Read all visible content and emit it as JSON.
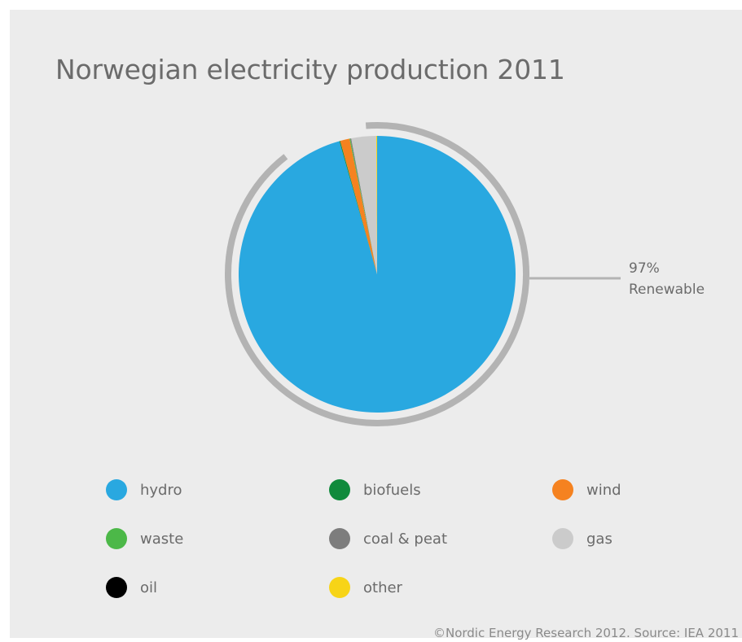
{
  "title": "Norwegian electricity production 2011",
  "callout": {
    "percent": "97%",
    "label": "Renewable"
  },
  "footer": "©Nordic Energy Research 2012. Source: IEA 2011",
  "colors": {
    "hydro": "#29a8e0",
    "biofuels": "#0f8a3c",
    "wind": "#f58220",
    "waste": "#4cb848",
    "coal_peat": "#7d7d7d",
    "gas": "#cbcbcb",
    "oil": "#000000",
    "other": "#f7d417",
    "ring": "#b3b3b3"
  },
  "legend": [
    {
      "label": "hydro",
      "color": "#29a8e0"
    },
    {
      "label": "biofuels",
      "color": "#0f8a3c"
    },
    {
      "label": "wind",
      "color": "#f58220"
    },
    {
      "label": "waste",
      "color": "#4cb848"
    },
    {
      "label": "coal & peat",
      "color": "#7d7d7d"
    },
    {
      "label": "gas",
      "color": "#cbcbcb"
    },
    {
      "label": "oil",
      "color": "#000000"
    },
    {
      "label": "other",
      "color": "#f7d417"
    }
  ],
  "chart_data": {
    "type": "pie",
    "title": "Norwegian electricity production 2011",
    "slices": [
      {
        "name": "hydro",
        "value": 95.7
      },
      {
        "name": "biofuels",
        "value": 0.1
      },
      {
        "name": "wind",
        "value": 1.1
      },
      {
        "name": "waste",
        "value": 0.1
      },
      {
        "name": "coal & peat",
        "value": 0.1
      },
      {
        "name": "gas",
        "value": 2.9
      },
      {
        "name": "oil",
        "value": 0.0
      },
      {
        "name": "other",
        "value": 0.1
      }
    ],
    "renewable_share_percent": 97
  }
}
